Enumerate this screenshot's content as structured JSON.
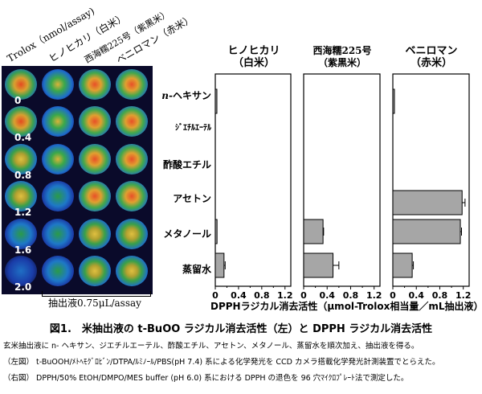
{
  "well_image": {
    "column_headers": [
      "Trolox（nmol/assay)",
      "ヒノヒカリ（白米）",
      "西海糯225号（紫黒米）",
      "ベニロマン（赤米）"
    ],
    "concentrations": [
      "0",
      "0.4",
      "0.8",
      "1.2",
      "1.6",
      "2.0"
    ],
    "extract_label": "抽出液0.75μL/assay"
  },
  "panel_headers": [
    {
      "line1": "ヒノヒカリ",
      "line2": "（白米）"
    },
    {
      "line1": "西海糯225号",
      "line2": "（紫黒米）"
    },
    {
      "line1": "ベニロマン",
      "line2": "（赤米）"
    }
  ],
  "row_labels": [
    "n-ヘキサン",
    "ｼﾞｴﾁﾙｴｰﾃﾙ",
    "酢酸エチル",
    "アセトン",
    "メタノール",
    "蒸留水"
  ],
  "x_axis_label": "DPPHラジカル消去活性（μmol-Trolox相当量／mL抽出液）",
  "chart_data": {
    "type": "bar",
    "orientation": "horizontal",
    "categories": [
      "n-ヘキサン",
      "ｼﾞｴﾁﾙｴｰﾃﾙ",
      "酢酸エチル",
      "アセトン",
      "メタノール",
      "蒸留水"
    ],
    "xlabel": "DPPHラジカル消去活性（μmol-Trolox相当量／mL抽出液）",
    "xlim": [
      0,
      1.3
    ],
    "ticks": [
      "0",
      "0.4",
      "0.8",
      "1.2"
    ],
    "series": [
      {
        "name": "ヒノヒカリ（白米）",
        "values": [
          0.02,
          0,
          0,
          0,
          0.03,
          0.15
        ],
        "errors": [
          0,
          0,
          0,
          0,
          0,
          0.02
        ]
      },
      {
        "name": "西海糯225号（紫黒米）",
        "values": [
          0,
          0,
          0,
          0,
          0.33,
          0.5
        ],
        "errors": [
          0,
          0,
          0,
          0,
          0.01,
          0.1
        ]
      },
      {
        "name": "ベニロマン（赤米）",
        "values": [
          0.02,
          0,
          0,
          1.18,
          1.15,
          0.33
        ],
        "errors": [
          0,
          0,
          0,
          0.05,
          0.02,
          0.02
        ]
      }
    ],
    "colors": {
      "bar": "#a6a6a6"
    }
  },
  "caption": {
    "title": "図1.　米抽出液の t-BuOO ラジカル消去活性（左）と DPPH ラジカル消去活性",
    "lines": [
      "玄米抽出液に n- ヘキサン、ジエチルエーテル、酢酸エチル、アセトン、メタノール、蒸留水を順次加え、抽出液を得る。",
      "（左図） t-BuOOH/ﾒﾄﾍﾓｸﾞﾛﾋﾞﾝ/DTPA/ﾙﾐﾉｰﾙ/PBS(pH 7.4) 系による化学発光を CCD カメラ搭載化学発光計測装置でとらえた。",
      "（右図） DPPH/50% EtOH/DMPO/MES buffer (pH 6.0) 系における DPPH の退色を 96 穴ﾏｲｸﾛﾌﾟﾚｰﾄ法で測定した。"
    ]
  }
}
